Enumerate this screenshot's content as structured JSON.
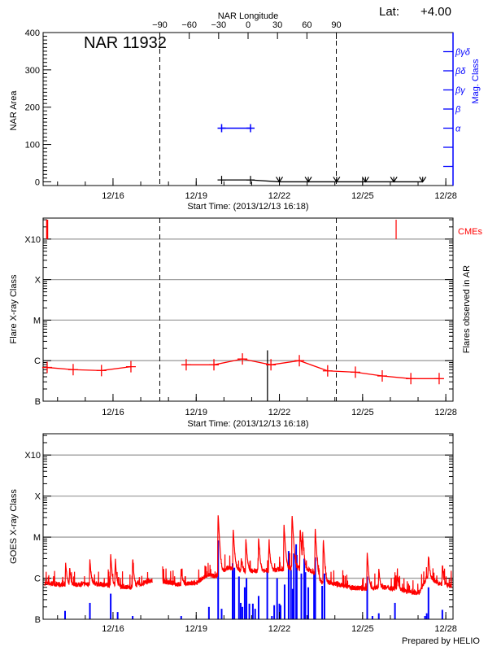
{
  "header": {
    "lat_label": "Lat:",
    "lat_value": "+4.00",
    "region_title": "NAR 11932",
    "longitude_axis_title": "NAR Longitude",
    "footer": "Prepared by HELIO"
  },
  "colors": {
    "axis": "#000000",
    "grid": "#a0a0a0",
    "flares": "#ff0000",
    "mag_class": "#0000ff",
    "goes_short": "#0000ff",
    "goes_long": "#ff0000"
  },
  "chart_data": [
    {
      "type": "line",
      "panel": "nar-area",
      "ylabel": "NAR Area",
      "y2label": "Mag. Class",
      "xlabel": "Start Time: (2013/12/13 16:18)",
      "xlim": [
        "2013-12-13T11:30",
        "2013-12-28T06:15"
      ],
      "x_ticks": [
        "12/16",
        "12/19",
        "12/22",
        "12/25",
        "12/28"
      ],
      "x_tick_dates": [
        "2013-12-16T00:00",
        "2013-12-19T00:00",
        "2013-12-22T00:00",
        "2013-12-25T00:00",
        "2013-12-28T00:00"
      ],
      "ylim": [
        -10,
        400
      ],
      "y_ticks": [
        0,
        100,
        200,
        300,
        400
      ],
      "longitude_lim": [
        -209,
        209
      ],
      "longitude_ticks": [
        -90,
        -60,
        -30,
        0,
        30,
        60,
        90
      ],
      "limb_longitudes": [
        -90,
        90
      ],
      "area": [
        {
          "t": "2013-12-19T22:00",
          "v": 5
        },
        {
          "t": "2013-12-20T23:00",
          "v": 5
        },
        {
          "t": "2013-12-22T00:00",
          "v": 0,
          "limit": true
        },
        {
          "t": "2013-12-23T01:00",
          "v": 0,
          "limit": true
        },
        {
          "t": "2013-12-24T01:30",
          "v": 0,
          "limit": true
        },
        {
          "t": "2013-12-25T02:30",
          "v": 0,
          "limit": true
        },
        {
          "t": "2013-12-26T03:00",
          "v": 0,
          "limit": true
        },
        {
          "t": "2013-12-27T04:00",
          "v": 0,
          "limit": true
        }
      ],
      "mag_axis": {
        "range": [
          0,
          8
        ],
        "ticks": [
          {
            "v": 1,
            "label": ""
          },
          {
            "v": 2,
            "label": ""
          },
          {
            "v": 3,
            "label": "α"
          },
          {
            "v": 4,
            "label": "β"
          },
          {
            "v": 5,
            "label": "βγ"
          },
          {
            "v": 6,
            "label": "βδ"
          },
          {
            "v": 7,
            "label": "βγδ"
          }
        ]
      },
      "mag_class": [
        {
          "t": "2013-12-19T22:00",
          "v": 3
        },
        {
          "t": "2013-12-20T23:00",
          "v": 3
        }
      ]
    },
    {
      "type": "line",
      "panel": "flare-class",
      "ylabel": "Flare X-ray Class",
      "y2label": "Flares observed in AR",
      "xlabel": "Start Time: (2013/12/13 16:18)",
      "ylim": [
        1e-07,
        0.0033
      ],
      "y_scale": "log",
      "y_ticks": [
        {
          "flux": 1e-07,
          "label": "B"
        },
        {
          "flux": 1e-06,
          "label": "C"
        },
        {
          "flux": 1e-05,
          "label": "M"
        },
        {
          "flux": 0.0001,
          "label": "X"
        },
        {
          "flux": 0.001,
          "label": "X10"
        }
      ],
      "grid": true,
      "cme_label": "CMEs",
      "cmes": [
        {
          "t": "2013-12-13T15:00",
          "thick": true
        },
        {
          "t": "2013-12-26T05:00",
          "thick": false
        }
      ],
      "vertical_marker": {
        "t": "2013-12-21T13:40",
        "class": "C1.8"
      },
      "flares": [
        {
          "t": "2013-12-13T15:00",
          "class": "B6.8"
        },
        {
          "t": "2013-12-14T13:30",
          "class": "B6.0"
        },
        {
          "t": "2013-12-15T14:00",
          "class": "B5.7"
        },
        {
          "t": "2013-12-16T15:30",
          "class": "B7.1"
        },
        null,
        {
          "t": "2013-12-18T15:20",
          "class": "B7.9"
        },
        {
          "t": "2013-12-19T15:20",
          "class": "B7.9"
        },
        {
          "t": "2013-12-20T16:00",
          "class": "C1.1"
        },
        {
          "t": "2013-12-21T16:40",
          "class": "B7.9"
        },
        {
          "t": "2013-12-22T17:15",
          "class": "C1.0"
        },
        {
          "t": "2013-12-23T17:45",
          "class": "B5.6"
        },
        {
          "t": "2013-12-24T17:45",
          "class": "B5.2"
        },
        {
          "t": "2013-12-25T17:00",
          "class": "B4.2"
        },
        {
          "t": "2013-12-26T17:45",
          "class": "B3.6"
        },
        {
          "t": "2013-12-27T18:15",
          "class": "B3.6"
        }
      ]
    },
    {
      "type": "line",
      "panel": "goes",
      "ylabel": "GOES X-ray Class",
      "ylim": [
        1e-07,
        0.0033
      ],
      "y_scale": "log",
      "grid": true,
      "goes_baseline": [
        {
          "t": "2013-12-13T13:00",
          "class": "B7.5"
        },
        {
          "t": "2013-12-14T03:00",
          "class": "B7.0"
        },
        {
          "t": "2013-12-14T17:00",
          "class": "B7.0"
        },
        {
          "t": "2013-12-15T07:00",
          "class": "B7.5"
        },
        {
          "t": "2013-12-16T01:00",
          "class": "B6.5"
        },
        {
          "t": "2013-12-16T15:00",
          "class": "B6.0"
        },
        {
          "t": "2013-12-17T08:00",
          "class": "B8.5"
        },
        {
          "t": "2013-12-17T10:00",
          "class": "B8.5"
        },
        null,
        {
          "t": "2013-12-17T19:00",
          "class": "B8.5"
        },
        {
          "t": "2013-12-18T09:00",
          "class": "B7.0"
        },
        {
          "t": "2013-12-18T23:00",
          "class": "B7.5"
        },
        {
          "t": "2013-12-19T10:00",
          "class": "C1.2"
        },
        {
          "t": "2013-12-19T19:00",
          "class": "C1.1"
        },
        {
          "t": "2013-12-20T03:00",
          "class": "C1.8"
        },
        {
          "t": "2013-12-20T17:00",
          "class": "C1.5"
        },
        {
          "t": "2013-12-21T07:00",
          "class": "C1.5"
        },
        {
          "t": "2013-12-21T21:00",
          "class": "C1.6"
        },
        {
          "t": "2013-12-22T12:00",
          "class": "C1.8"
        },
        {
          "t": "2013-12-23T05:00",
          "class": "C1.5"
        },
        {
          "t": "2013-12-23T12:00",
          "class": "B8.0"
        },
        {
          "t": "2013-12-23T23:00",
          "class": "B7.5"
        },
        {
          "t": "2013-12-24T13:00",
          "class": "B6.0"
        },
        {
          "t": "2013-12-25T03:00",
          "class": "B5.5"
        },
        {
          "t": "2013-12-25T17:00",
          "class": "B6.0"
        },
        {
          "t": "2013-12-26T07:00",
          "class": "B5.5"
        },
        {
          "t": "2013-12-26T17:30",
          "class": "B4.5"
        },
        {
          "t": "2013-12-27T01:00",
          "class": "B4.5"
        },
        {
          "t": "2013-12-27T08:00",
          "class": "C1.1"
        },
        {
          "t": "2013-12-27T18:00",
          "class": "B7.5"
        },
        {
          "t": "2013-12-28T05:00",
          "class": "B6.5"
        }
      ],
      "goes_peaks": [
        {
          "t": "2013-12-14T07:00",
          "class": "C2.4"
        },
        {
          "t": "2013-12-14T10:30",
          "class": "C1.8"
        },
        {
          "t": "2013-12-15T04:00",
          "class": "C2.8"
        },
        {
          "t": "2013-12-15T22:00",
          "class": "C3.8"
        },
        {
          "t": "2013-12-16T02:00",
          "class": "C2.8"
        },
        {
          "t": "2013-12-16T17:00",
          "class": "C2.9"
        },
        {
          "t": "2013-12-18T11:00",
          "class": "C1.8"
        },
        {
          "t": "2013-12-19T19:00",
          "class": "M3.4"
        },
        {
          "t": "2013-12-20T08:00",
          "class": "M1.6"
        },
        {
          "t": "2013-12-20T15:00",
          "class": "C3.0"
        },
        {
          "t": "2013-12-20T19:00",
          "class": "C9.0"
        },
        {
          "t": "2013-12-21T06:00",
          "class": "M1.0"
        },
        {
          "t": "2013-12-21T15:00",
          "class": "C8.0"
        },
        {
          "t": "2013-12-22T04:00",
          "class": "M2.0"
        },
        {
          "t": "2013-12-22T11:00",
          "class": "M3.5"
        },
        {
          "t": "2013-12-22T18:00",
          "class": "M1.6"
        },
        {
          "t": "2013-12-22T20:00",
          "class": "M1.3"
        },
        {
          "t": "2013-12-23T07:00",
          "class": "M1.6"
        },
        {
          "t": "2013-12-23T14:00",
          "class": "C9.0"
        },
        {
          "t": "2013-12-25T04:00",
          "class": "C4.2"
        },
        {
          "t": "2013-12-25T14:00",
          "class": "C1.8"
        },
        {
          "t": "2013-12-26T06:00",
          "class": "C1.4"
        },
        {
          "t": "2013-12-27T09:00",
          "class": "C3.6"
        },
        {
          "t": "2013-12-27T21:00",
          "class": "C2.1"
        }
      ],
      "goes_short_bars": [
        {
          "t": "2013-12-14T06:30",
          "class": "B1.6"
        },
        {
          "t": "2013-12-15T04:00",
          "class": "B2.5"
        },
        {
          "t": "2013-12-15T22:00",
          "class": "B4.2"
        },
        {
          "t": "2013-12-16T04:00",
          "class": "B1.5"
        },
        {
          "t": "2013-12-16T17:00",
          "class": "B1.2"
        },
        {
          "t": "2013-12-18T11:00",
          "class": "B1.2"
        },
        {
          "t": "2013-12-19T11:00",
          "class": "B2.0"
        },
        {
          "t": "2013-12-19T19:00",
          "class": "C8.3"
        },
        {
          "t": "2013-12-19T22:00",
          "class": "B1.8"
        },
        {
          "t": "2013-12-20T07:30",
          "class": "C2.3"
        },
        {
          "t": "2013-12-20T09:00",
          "class": "C1.8"
        },
        {
          "t": "2013-12-20T13:00",
          "class": "C1.1"
        },
        {
          "t": "2013-12-20T14:30",
          "class": "B2.5"
        },
        {
          "t": "2013-12-20T16:00",
          "class": "B2.0"
        },
        {
          "t": "2013-12-20T18:00",
          "class": "B6.0"
        },
        {
          "t": "2013-12-20T19:30",
          "class": "C1.0"
        },
        {
          "t": "2013-12-20T22:00",
          "class": "B2.4"
        },
        {
          "t": "2013-12-21T01:00",
          "class": "B2.4"
        },
        {
          "t": "2013-12-21T03:00",
          "class": "B1.8"
        },
        {
          "t": "2013-12-21T06:00",
          "class": "B3.7"
        },
        {
          "t": "2013-12-21T13:30",
          "class": "C1.6"
        },
        {
          "t": "2013-12-21T17:30",
          "class": "B1.2"
        },
        {
          "t": "2013-12-21T19:30",
          "class": "B2.2"
        },
        {
          "t": "2013-12-21T22:00",
          "class": "C1.0"
        },
        {
          "t": "2013-12-22T00:00",
          "class": "B2.4"
        },
        {
          "t": "2013-12-22T01:00",
          "class": "B2.2"
        },
        {
          "t": "2013-12-22T04:30",
          "class": "B7.0"
        },
        {
          "t": "2013-12-22T08:00",
          "class": "C4.6"
        },
        {
          "t": "2013-12-22T10:00",
          "class": "C1.6"
        },
        {
          "t": "2013-12-22T11:30",
          "class": "B5.5"
        },
        {
          "t": "2013-12-22T12:30",
          "class": "C4.0"
        },
        {
          "t": "2013-12-22T14:30",
          "class": "C6.7"
        },
        {
          "t": "2013-12-22T15:00",
          "class": "C3.7"
        },
        {
          "t": "2013-12-22T19:00",
          "class": "C1.3"
        },
        {
          "t": "2013-12-22T21:30",
          "class": "C3.0"
        },
        {
          "t": "2013-12-22T22:30",
          "class": "C1.4"
        },
        {
          "t": "2013-12-23T01:00",
          "class": "B6.0"
        },
        {
          "t": "2013-12-23T06:00",
          "class": "C1.4"
        },
        {
          "t": "2013-12-23T07:00",
          "class": "C3.2"
        },
        {
          "t": "2013-12-23T13:00",
          "class": "B6.5"
        },
        {
          "t": "2013-12-23T15:00",
          "class": "C1.3"
        },
        {
          "t": "2013-12-25T04:00",
          "class": "C1.1"
        },
        {
          "t": "2013-12-25T08:30",
          "class": "B1.2"
        },
        {
          "t": "2013-12-25T14:00",
          "class": "B1.4"
        },
        {
          "t": "2013-12-26T04:00",
          "class": "B2.5"
        },
        {
          "t": "2013-12-27T06:00",
          "class": "B1.2"
        },
        {
          "t": "2013-12-27T07:30",
          "class": "B1.4"
        },
        {
          "t": "2013-12-27T09:00",
          "class": "B6.0"
        },
        {
          "t": "2013-12-27T21:00",
          "class": "B1.7"
        }
      ]
    }
  ]
}
